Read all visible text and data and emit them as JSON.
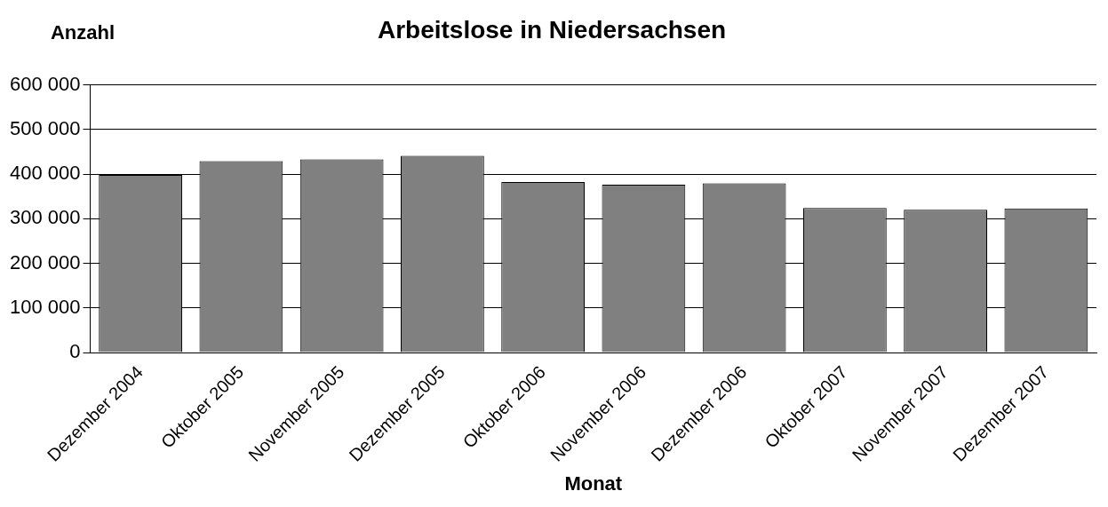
{
  "chart_data": {
    "type": "bar",
    "title": "Arbeitslose in Niedersachsen",
    "xlabel": "Monat",
    "ylabel": "Anzahl",
    "categories": [
      "Dezember 2004",
      "Oktober 2005",
      "November 2005",
      "Dezember 2005",
      "Oktober 2006",
      "November 2006",
      "Dezember 2006",
      "Oktober 2007",
      "November 2007",
      "Dezember 2007"
    ],
    "values": [
      398000,
      429000,
      433000,
      441000,
      382000,
      376000,
      379000,
      324000,
      320000,
      323000
    ],
    "color": "#808080",
    "ylim": [
      0,
      600000
    ],
    "yticks": [
      {
        "value": 0,
        "label": "0"
      },
      {
        "value": 100000,
        "label": "100 000"
      },
      {
        "value": 200000,
        "label": "200 000"
      },
      {
        "value": 300000,
        "label": "300 000"
      },
      {
        "value": 400000,
        "label": "400 000"
      },
      {
        "value": 500000,
        "label": "500 000"
      },
      {
        "value": 600000,
        "label": "600 000"
      }
    ],
    "grid": "y",
    "legend": false
  }
}
